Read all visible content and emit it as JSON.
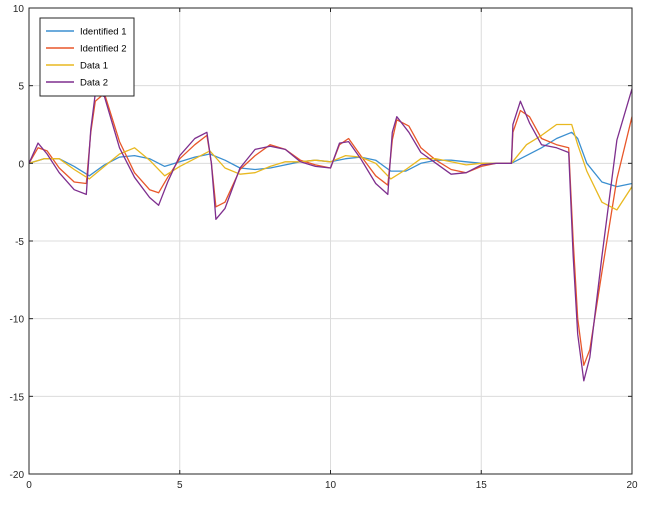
{
  "chart_data": {
    "type": "line",
    "title": "",
    "xlabel": "",
    "ylabel": "",
    "xlim": [
      0,
      20
    ],
    "ylim": [
      -20,
      10
    ],
    "xticks": [
      0,
      5,
      10,
      15,
      20
    ],
    "yticks": [
      -20,
      -15,
      -10,
      -5,
      0,
      5,
      10
    ],
    "grid": true,
    "legend_position": "top-left",
    "series": [
      {
        "name": "Identified 1",
        "color": "#3b8fd0",
        "x": [
          0,
          0.5,
          1,
          1.5,
          2,
          2.5,
          3,
          3.5,
          4,
          4.5,
          5,
          5.5,
          6,
          6.5,
          7,
          7.5,
          8,
          8.5,
          9,
          9.5,
          10,
          10.5,
          11,
          11.5,
          12,
          12.5,
          13,
          13.5,
          14,
          14.5,
          15,
          15.5,
          16,
          16.5,
          17,
          17.5,
          18,
          18.2,
          18.5,
          19,
          19.5,
          20
        ],
        "y": [
          0,
          0.3,
          0.3,
          -0.2,
          -0.8,
          -0.1,
          0.4,
          0.5,
          0.3,
          -0.2,
          0.1,
          0.4,
          0.6,
          0.2,
          -0.3,
          -0.4,
          -0.3,
          -0.1,
          0.1,
          0.2,
          0.1,
          0.3,
          0.4,
          0.2,
          -0.5,
          -0.5,
          0,
          0.2,
          0.2,
          0.1,
          0,
          0,
          0,
          0.5,
          1.0,
          1.6,
          2.0,
          1.6,
          0,
          -1.2,
          -1.5,
          -1.3
        ]
      },
      {
        "name": "Identified 2",
        "color": "#e8572a",
        "x": [
          0,
          0.3,
          0.6,
          1,
          1.5,
          1.9,
          2.05,
          2.2,
          2.5,
          3,
          3.5,
          4,
          4.3,
          4.6,
          5,
          5.5,
          5.9,
          6.05,
          6.2,
          6.5,
          7,
          7.5,
          8,
          8.5,
          9,
          9.5,
          10,
          10.3,
          10.6,
          11,
          11.5,
          11.9,
          12.05,
          12.2,
          12.6,
          13,
          13.5,
          14,
          14.5,
          15,
          15.5,
          16,
          16.05,
          16.3,
          16.6,
          17,
          17.5,
          17.9,
          18.05,
          18.2,
          18.4,
          18.6,
          19,
          19.5,
          20
        ],
        "y": [
          0,
          1.0,
          0.8,
          -0.3,
          -1.2,
          -1.3,
          2.0,
          4.0,
          4.5,
          1.4,
          -0.6,
          -1.7,
          -1.9,
          -0.9,
          0.3,
          1.2,
          1.8,
          0,
          -2.8,
          -2.5,
          -0.4,
          0.5,
          1.2,
          0.9,
          0.2,
          -0.1,
          -0.3,
          1.2,
          1.6,
          0.5,
          -0.8,
          -1.4,
          1.5,
          2.8,
          2.4,
          1.0,
          0.2,
          -0.4,
          -0.6,
          -0.2,
          0,
          0,
          2.0,
          3.4,
          3.0,
          1.6,
          1.2,
          1.0,
          -5.0,
          -10.0,
          -13.0,
          -12.0,
          -7.0,
          -1.0,
          3.0
        ]
      },
      {
        "name": "Data 1",
        "color": "#e8b820",
        "x": [
          0,
          0.5,
          1,
          1.5,
          2,
          2.5,
          3,
          3.5,
          4,
          4.5,
          5,
          5.5,
          6,
          6.5,
          7,
          7.5,
          8,
          8.5,
          9,
          9.5,
          10,
          10.5,
          11,
          11.5,
          12,
          12.5,
          13,
          13.5,
          14,
          14.5,
          15,
          15.5,
          16,
          16.5,
          17,
          17.5,
          18,
          18.2,
          18.5,
          19,
          19.5,
          20
        ],
        "y": [
          0,
          0.3,
          0.3,
          -0.4,
          -1.0,
          -0.2,
          0.6,
          1.0,
          0.2,
          -0.8,
          -0.2,
          0.3,
          0.8,
          -0.3,
          -0.7,
          -0.6,
          -0.2,
          0.1,
          0.1,
          0.2,
          0.1,
          0.5,
          0.4,
          0,
          -1.0,
          -0.4,
          0.3,
          0.3,
          0.1,
          -0.1,
          0,
          0,
          0,
          1.2,
          1.8,
          2.5,
          2.5,
          1.2,
          -0.5,
          -2.5,
          -3.0,
          -1.5
        ]
      },
      {
        "name": "Data 2",
        "color": "#7e2f8e",
        "x": [
          0,
          0.3,
          0.6,
          1,
          1.5,
          1.9,
          2.05,
          2.2,
          2.5,
          3,
          3.5,
          4,
          4.3,
          4.6,
          5,
          5.5,
          5.9,
          6.05,
          6.2,
          6.5,
          7,
          7.5,
          8,
          8.5,
          9,
          9.5,
          10,
          10.3,
          10.6,
          11,
          11.5,
          11.9,
          12.05,
          12.2,
          12.6,
          13,
          13.5,
          14,
          14.5,
          15,
          15.5,
          16,
          16.05,
          16.3,
          16.6,
          17,
          17.5,
          17.9,
          18.05,
          18.2,
          18.4,
          18.6,
          19,
          19.5,
          20
        ],
        "y": [
          0,
          1.3,
          0.6,
          -0.6,
          -1.7,
          -2.0,
          2.2,
          4.5,
          4.3,
          1.0,
          -0.9,
          -2.2,
          -2.7,
          -1.2,
          0.5,
          1.6,
          2.0,
          0,
          -3.6,
          -2.9,
          -0.3,
          0.9,
          1.1,
          0.9,
          0.1,
          -0.2,
          -0.3,
          1.3,
          1.4,
          0.3,
          -1.3,
          -2.0,
          2.0,
          3.0,
          2.0,
          0.7,
          0,
          -0.7,
          -0.6,
          -0.1,
          0,
          0,
          2.5,
          4.0,
          2.6,
          1.2,
          1.0,
          0.7,
          -6.0,
          -11.0,
          -14.0,
          -12.5,
          -6.0,
          1.5,
          4.8
        ]
      }
    ]
  }
}
